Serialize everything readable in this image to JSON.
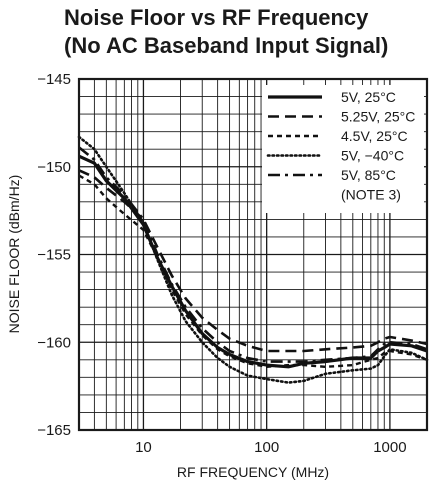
{
  "chart_data": {
    "type": "line",
    "title_line1": "Noise Floor vs RF Frequency",
    "title_line2": "(No AC Baseband Input Signal)",
    "xlabel": "RF FREQUENCY (MHz)",
    "ylabel": "NOISE FLOOR (dBm/Hz)",
    "xscale": "log",
    "xlim": [
      3,
      2000
    ],
    "ylim": [
      -165,
      -145
    ],
    "xticks": [
      10,
      100,
      1000
    ],
    "xtick_labels": [
      "10",
      "100",
      "1000"
    ],
    "yticks": [
      -165,
      -160,
      -155,
      -150,
      -145
    ],
    "ytick_labels": [
      "−165",
      "−160",
      "−155",
      "−150",
      "−145"
    ],
    "grid": true,
    "legend_position": "top-right",
    "legend_note": "(NOTE 3)",
    "series": [
      {
        "name": "5V, 25°C",
        "dash": "solid",
        "x": [
          3,
          4,
          5,
          7,
          10,
          13,
          17,
          22,
          30,
          40,
          50,
          70,
          100,
          150,
          200,
          300,
          500,
          700,
          800,
          900,
          1000,
          1500,
          2000
        ],
        "y": [
          -149.4,
          -149.8,
          -150.8,
          -151.8,
          -153.3,
          -155.2,
          -156.8,
          -158.2,
          -159.5,
          -160.3,
          -160.7,
          -161.1,
          -161.3,
          -161.4,
          -161.2,
          -161.1,
          -160.9,
          -160.9,
          -160.5,
          -160.3,
          -160.1,
          -160.2,
          -160.5
        ]
      },
      {
        "name": "5.25V, 25°C",
        "dash": "long-dash",
        "x": [
          3,
          4,
          5,
          7,
          10,
          13,
          17,
          22,
          30,
          40,
          50,
          70,
          100,
          150,
          200,
          300,
          500,
          700,
          800,
          900,
          1000,
          1500,
          2000
        ],
        "y": [
          -150.2,
          -150.6,
          -151.2,
          -152.0,
          -153.0,
          -154.6,
          -156.2,
          -157.5,
          -158.6,
          -159.3,
          -159.8,
          -160.2,
          -160.5,
          -160.5,
          -160.5,
          -160.4,
          -160.3,
          -160.2,
          -160.0,
          -159.8,
          -159.7,
          -159.9,
          -160.1
        ]
      },
      {
        "name": "4.5V, 25°C",
        "dash": "short-dash",
        "x": [
          3,
          4,
          5,
          7,
          10,
          13,
          17,
          22,
          30,
          40,
          50,
          70,
          100,
          150,
          200,
          300,
          500,
          700,
          800,
          900,
          1000,
          1500,
          2000
        ],
        "y": [
          -150.5,
          -151.0,
          -151.8,
          -152.7,
          -153.6,
          -155.2,
          -157.0,
          -158.4,
          -159.6,
          -160.4,
          -160.8,
          -161.2,
          -161.4,
          -161.3,
          -161.3,
          -161.4,
          -161.3,
          -161.0,
          -160.9,
          -160.6,
          -160.5,
          -160.7,
          -161.0
        ]
      },
      {
        "name": "5V, −40°C",
        "dash": "dotted",
        "x": [
          3,
          4,
          5,
          7,
          10,
          13,
          17,
          22,
          30,
          40,
          50,
          70,
          100,
          150,
          200,
          300,
          500,
          700,
          800,
          900,
          1000,
          1500,
          2000
        ],
        "y": [
          -148.3,
          -149.0,
          -150.0,
          -151.5,
          -153.2,
          -155.3,
          -157.3,
          -158.8,
          -160.0,
          -160.9,
          -161.4,
          -161.9,
          -162.1,
          -162.3,
          -162.2,
          -161.8,
          -161.6,
          -161.5,
          -161.3,
          -160.8,
          -160.4,
          -160.6,
          -161.0
        ]
      },
      {
        "name": "5V, 85°C",
        "dash": "dash-dot",
        "x": [
          3,
          4,
          5,
          7,
          10,
          13,
          17,
          22,
          30,
          40,
          50,
          70,
          100,
          150,
          200,
          300,
          500,
          700,
          800,
          900,
          1000,
          1500,
          2000
        ],
        "y": [
          -148.9,
          -149.6,
          -150.6,
          -151.6,
          -153.0,
          -155.0,
          -156.7,
          -158.0,
          -159.2,
          -160.0,
          -160.5,
          -160.9,
          -161.1,
          -161.1,
          -161.1,
          -161.0,
          -160.9,
          -160.8,
          -160.4,
          -160.1,
          -160.0,
          -160.1,
          -160.4
        ]
      }
    ]
  }
}
